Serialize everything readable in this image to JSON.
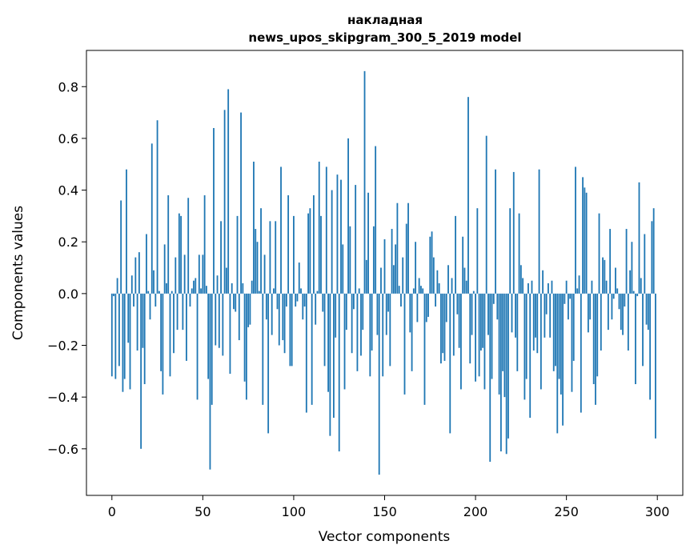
{
  "chart_data": {
    "type": "bar",
    "title_line1": "накладная",
    "title_line2": "news_upos_skipgram_300_5_2019 model",
    "xlabel": "Vector components",
    "ylabel": "Components values",
    "xlim": [
      -14,
      314
    ],
    "ylim": [
      -0.78,
      0.94
    ],
    "xticks": [
      0,
      50,
      100,
      150,
      200,
      250,
      300
    ],
    "xtick_labels": [
      "0",
      "50",
      "100",
      "150",
      "200",
      "250",
      "300"
    ],
    "yticks": [
      -0.6,
      -0.4,
      -0.2,
      0.0,
      0.2,
      0.4,
      0.6,
      0.8
    ],
    "ytick_labels": [
      "−0.6",
      "−0.4",
      "−0.2",
      "0.0",
      "0.2",
      "0.4",
      "0.6",
      "0.8"
    ],
    "bar_color": "#1f77b4",
    "grid": false,
    "values": [
      -0.32,
      -0.01,
      -0.33,
      0.06,
      -0.28,
      0.36,
      -0.38,
      -0.33,
      0.48,
      -0.19,
      -0.37,
      0.07,
      -0.05,
      0.14,
      -0.22,
      0.16,
      -0.6,
      -0.21,
      -0.35,
      0.23,
      0.01,
      -0.1,
      0.58,
      0.09,
      -0.05,
      0.67,
      0.01,
      -0.3,
      -0.39,
      0.19,
      0.04,
      0.38,
      -0.32,
      0.01,
      -0.23,
      0.14,
      -0.14,
      0.31,
      0.3,
      -0.14,
      0.15,
      -0.26,
      0.37,
      -0.05,
      0.02,
      0.05,
      0.06,
      -0.41,
      0.15,
      0.02,
      0.15,
      0.38,
      0.03,
      -0.33,
      -0.68,
      -0.43,
      0.64,
      -0.2,
      0.07,
      -0.21,
      0.28,
      -0.24,
      0.71,
      0.1,
      0.79,
      -0.31,
      0.04,
      -0.06,
      -0.07,
      0.3,
      -0.18,
      0.7,
      0.04,
      -0.34,
      -0.41,
      -0.13,
      -0.12,
      0.05,
      0.51,
      0.25,
      0.2,
      0.01,
      0.33,
      -0.43,
      0.15,
      -0.1,
      -0.54,
      0.28,
      -0.16,
      0.02,
      0.28,
      -0.06,
      -0.2,
      0.49,
      -0.18,
      -0.23,
      -0.05,
      0.38,
      -0.28,
      -0.28,
      0.3,
      -0.05,
      -0.03,
      0.12,
      0.02,
      -0.1,
      -0.05,
      -0.46,
      0.31,
      0.33,
      -0.43,
      0.38,
      -0.12,
      0.01,
      0.51,
      0.3,
      -0.07,
      -0.28,
      0.49,
      -0.38,
      -0.55,
      0.4,
      -0.48,
      -0.17,
      0.46,
      -0.61,
      0.44,
      0.19,
      -0.37,
      -0.14,
      0.6,
      0.26,
      -0.23,
      -0.06,
      0.42,
      -0.3,
      0.02,
      -0.24,
      -0.14,
      0.86,
      0.13,
      0.39,
      -0.32,
      -0.22,
      0.26,
      0.57,
      -0.16,
      -0.7,
      0.1,
      -0.32,
      0.21,
      -0.16,
      -0.07,
      -0.28,
      0.25,
      0.11,
      0.19,
      0.35,
      0.03,
      -0.05,
      0.14,
      -0.39,
      0.27,
      0.35,
      -0.15,
      -0.3,
      0.02,
      0.2,
      -0.11,
      0.06,
      0.03,
      0.02,
      -0.43,
      -0.11,
      -0.09,
      0.22,
      0.24,
      0.14,
      -0.05,
      0.09,
      0.04,
      -0.27,
      -0.23,
      -0.26,
      -0.11,
      0.11,
      -0.54,
      0.06,
      -0.24,
      0.3,
      -0.08,
      -0.21,
      -0.37,
      0.22,
      0.1,
      0.05,
      0.76,
      -0.27,
      -0.16,
      0.01,
      -0.34,
      0.33,
      -0.32,
      -0.22,
      -0.21,
      -0.37,
      0.61,
      -0.16,
      -0.65,
      -0.33,
      -0.04,
      0.48,
      -0.1,
      -0.39,
      -0.61,
      -0.3,
      -0.4,
      -0.62,
      -0.56,
      0.33,
      -0.15,
      0.47,
      -0.17,
      -0.3,
      0.31,
      0.11,
      0.06,
      -0.41,
      -0.33,
      0.04,
      -0.48,
      0.05,
      -0.22,
      -0.17,
      -0.23,
      0.48,
      -0.37,
      0.09,
      -0.17,
      -0.08,
      0.04,
      -0.17,
      0.05,
      -0.3,
      -0.28,
      -0.54,
      -0.33,
      -0.39,
      -0.51,
      -0.04,
      0.05,
      -0.1,
      -0.02,
      -0.38,
      -0.26,
      0.49,
      0.02,
      0.07,
      -0.46,
      0.45,
      0.41,
      0.39,
      -0.15,
      -0.1,
      0.05,
      -0.35,
      -0.43,
      -0.32,
      0.31,
      -0.22,
      0.14,
      0.13,
      0.05,
      -0.14,
      0.25,
      -0.1,
      -0.02,
      0.1,
      0.02,
      -0.06,
      -0.14,
      -0.16,
      -0.05,
      0.25,
      -0.22,
      0.09,
      0.2,
      0.01,
      -0.35,
      -0.01,
      0.43,
      0.06,
      -0.28,
      0.23,
      -0.12,
      -0.14,
      -0.41,
      0.28,
      0.33,
      -0.56
    ]
  }
}
